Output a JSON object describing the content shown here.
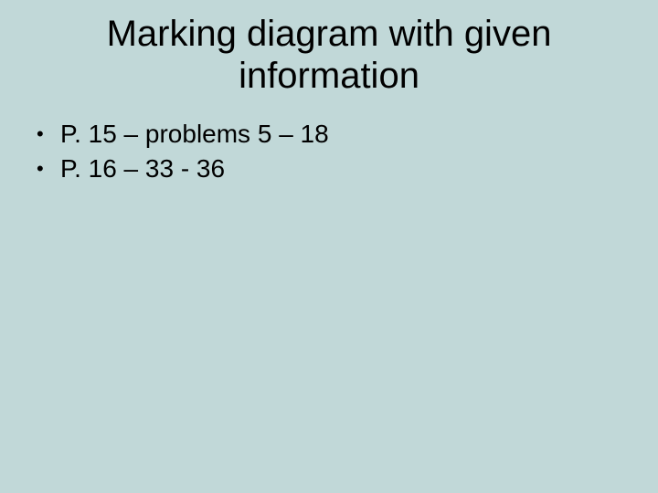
{
  "slide": {
    "title": "Marking diagram with given information",
    "bullets": [
      "P. 15 – problems 5 – 18",
      "P. 16 – 33 - 36"
    ],
    "background_color": "#c1d8d8",
    "text_color": "#000000",
    "title_fontsize": 40,
    "bullet_fontsize": 28,
    "font_family": "Arial"
  }
}
